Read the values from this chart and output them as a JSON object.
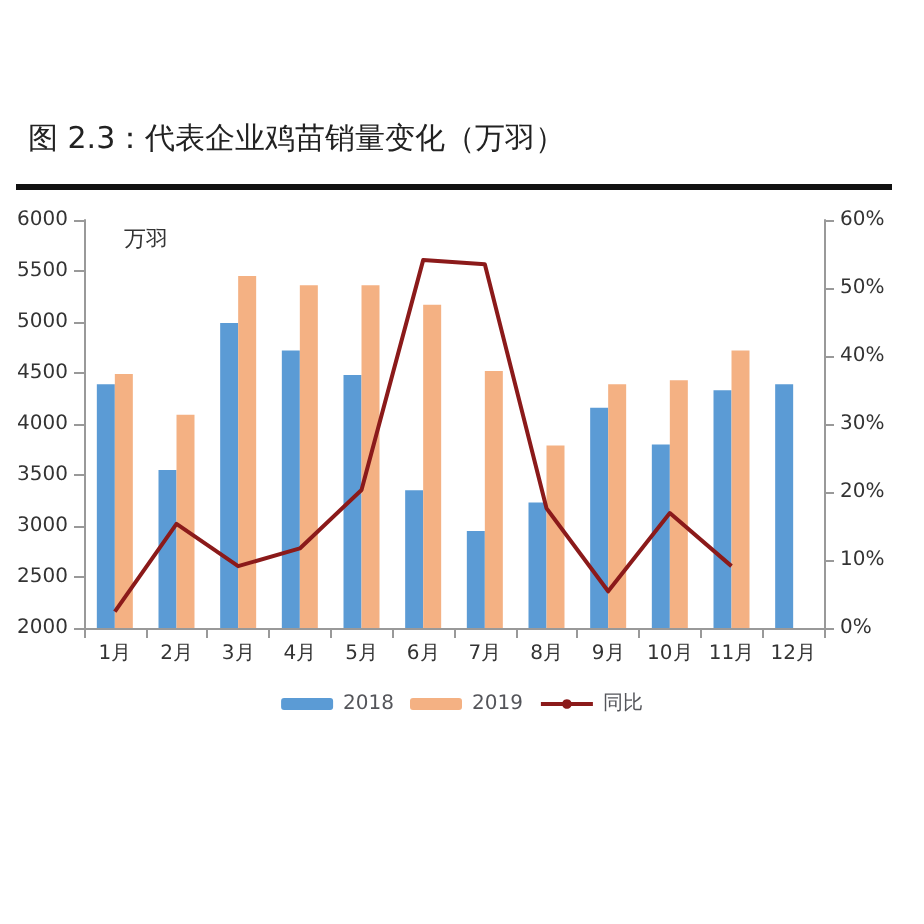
{
  "chart_data": {
    "type": "bar",
    "title": "图 2.3：代表企业鸡苗销量变化（万羽）",
    "ylabel": "万羽",
    "categories": [
      "1月",
      "2月",
      "3月",
      "4月",
      "5月",
      "6月",
      "7月",
      "8月",
      "9月",
      "10月",
      "11月",
      "12月"
    ],
    "series": [
      {
        "name": "2018",
        "color": "#5b9bd5",
        "values": [
          4390,
          3550,
          4990,
          4720,
          4480,
          3350,
          2950,
          3230,
          4160,
          3800,
          4330,
          4390
        ]
      },
      {
        "name": "2019",
        "color": "#f4b183",
        "values": [
          4490,
          4090,
          5450,
          5360,
          5360,
          5170,
          4520,
          3790,
          4390,
          4430,
          4720,
          null
        ]
      },
      {
        "name": "同比",
        "type": "line",
        "axis": "y2",
        "color": "#8b1a1a",
        "values": [
          2.4,
          15.3,
          9.1,
          11.7,
          20.3,
          54.1,
          53.5,
          17.6,
          5.4,
          16.9,
          9.1,
          null
        ]
      }
    ],
    "ylim": [
      2000,
      6000
    ],
    "yticks": [
      2000,
      2500,
      3000,
      3500,
      4000,
      4500,
      5000,
      5500,
      6000
    ],
    "y2lim": [
      0,
      60
    ],
    "y2ticks": [
      {
        "value": 0,
        "label": "0%"
      },
      {
        "value": 10,
        "label": "10%"
      },
      {
        "value": 20,
        "label": "20%"
      },
      {
        "value": 30,
        "label": "30%"
      },
      {
        "value": 40,
        "label": "40%"
      },
      {
        "value": 50,
        "label": "50%"
      },
      {
        "value": 60,
        "label": "60%"
      }
    ],
    "legend": "bottom",
    "grid": false,
    "marker": "none",
    "line_style": "solid"
  }
}
